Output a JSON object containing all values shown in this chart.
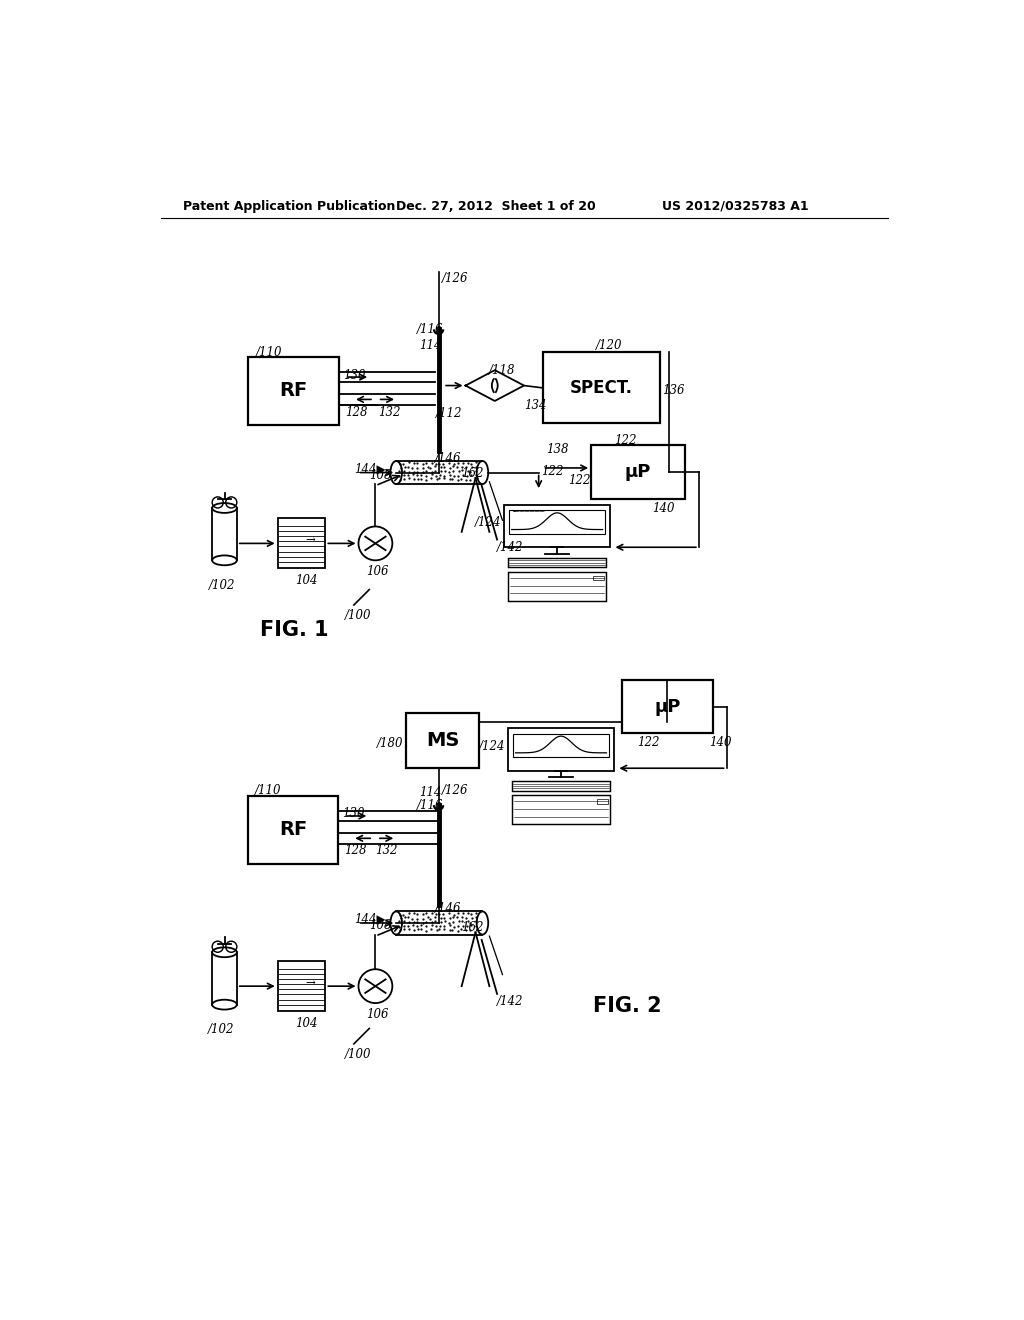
{
  "title_left": "Patent Application Publication",
  "title_mid": "Dec. 27, 2012  Sheet 1 of 20",
  "title_right": "US 2012/0325783 A1",
  "bg_color": "#ffffff",
  "fig1_label": "FIG. 1",
  "fig2_label": "FIG. 2"
}
